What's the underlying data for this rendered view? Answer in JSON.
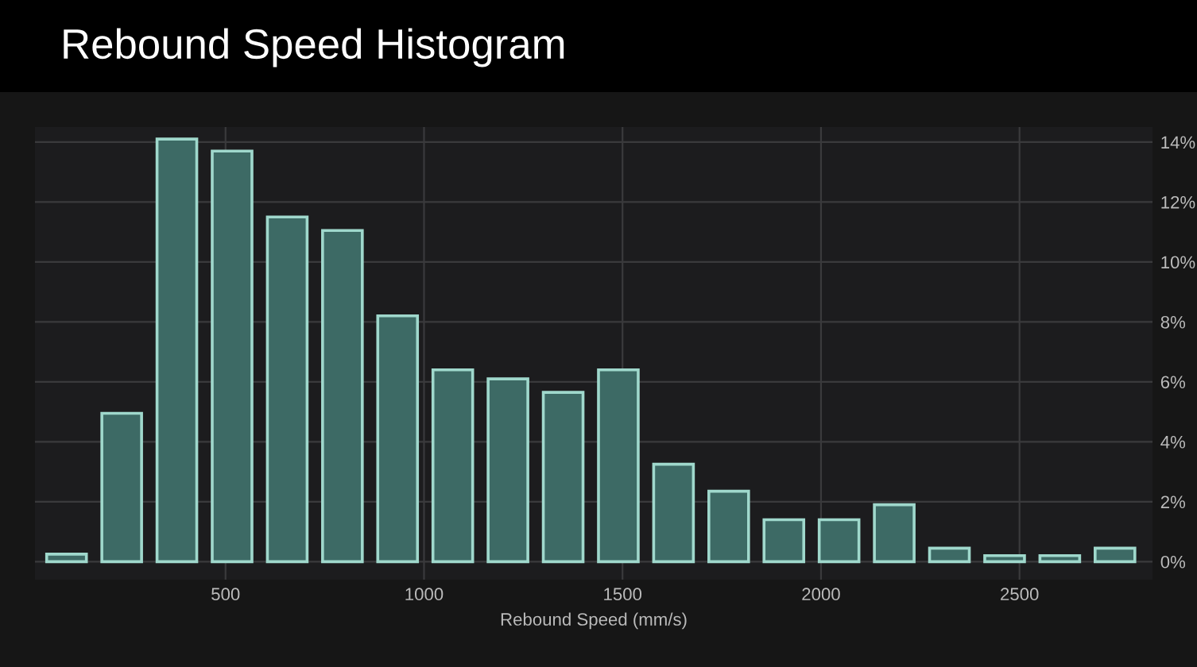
{
  "chart_data": {
    "type": "histogram",
    "title": "Rebound Speed Histogram",
    "xlabel": "Rebound Speed (mm/s)",
    "bins": [
      30,
      169,
      308,
      447,
      586,
      725,
      864,
      1003,
      1142,
      1281,
      1420,
      1559,
      1698,
      1837,
      1976,
      2115,
      2254,
      2393,
      2532,
      2671,
      2810
    ],
    "values": [
      0.25,
      4.95,
      14.1,
      13.7,
      11.5,
      11.05,
      8.2,
      6.4,
      6.1,
      5.65,
      6.4,
      3.25,
      2.35,
      1.4,
      1.4,
      1.9,
      0.45,
      0.2,
      0.2,
      0.45
    ],
    "color": "#3d6a65",
    "xlim": [
      20,
      2835
    ],
    "xticks": [
      500,
      1000,
      1500,
      2000,
      2500
    ],
    "ylim": [
      -0.6,
      14.5
    ],
    "yticks": [
      {
        "value": 0,
        "label": "0%"
      },
      {
        "value": 2,
        "label": "2%"
      },
      {
        "value": 4,
        "label": "4%"
      },
      {
        "value": 6,
        "label": "6%"
      },
      {
        "value": 8,
        "label": "8%"
      },
      {
        "value": 10,
        "label": "10%"
      },
      {
        "value": 12,
        "label": "12%"
      },
      {
        "value": 14,
        "label": "14%"
      }
    ],
    "grid": true
  }
}
